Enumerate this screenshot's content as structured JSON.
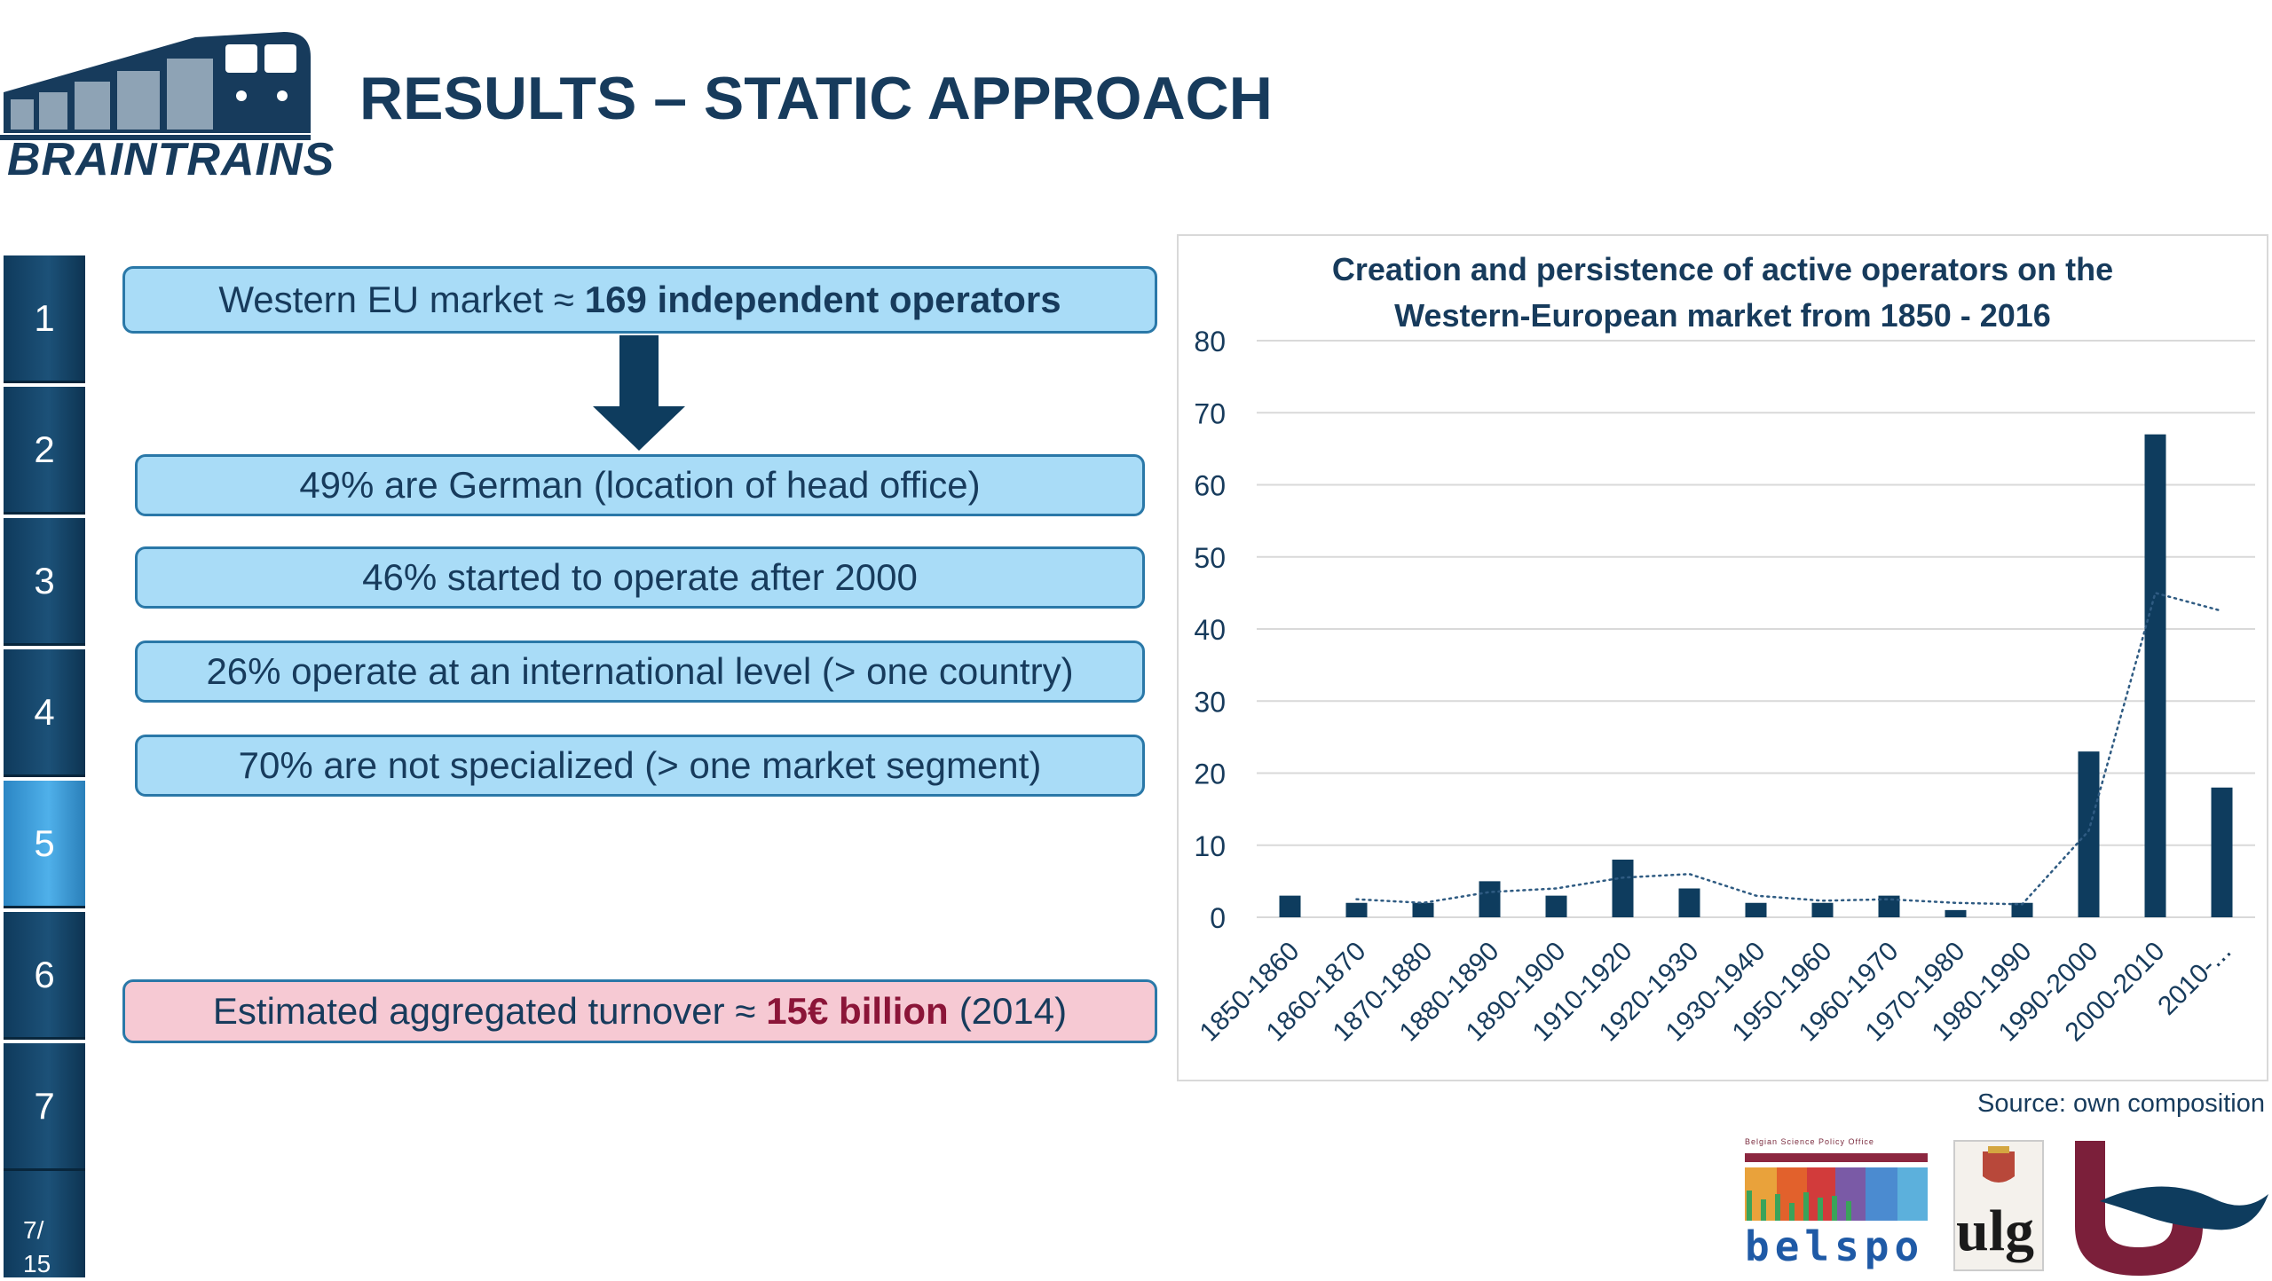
{
  "header": {
    "logo_text": "BRAINTRAINS",
    "title": "RESULTS – STATIC APPROACH"
  },
  "nav": {
    "items": [
      "1",
      "2",
      "3",
      "4",
      "5",
      "6",
      "7"
    ],
    "active": "5",
    "page_current": "7/",
    "page_total": "15"
  },
  "boxes": {
    "main_prefix": "Western EU market ≈",
    "main_bold": "169 independent operators",
    "facts": [
      "49% are German (location of head office)",
      "46% started to operate after 2000",
      "26% operate at an international level (> one country)",
      "70% are not specialized (> one market segment)"
    ],
    "turnover_prefix": "Estimated aggregated turnover ≈",
    "turnover_bold": "15€ billion",
    "turnover_suffix": "(2014)"
  },
  "colors": {
    "navy": "#173b5c",
    "bar": "#0e3c5e",
    "box_fill": "#a9dcf7",
    "box_border": "#2a78a8",
    "pink_fill": "#f6c9d3",
    "accent_red": "#8b1538",
    "active_nav": "#4fb0ea"
  },
  "chart_data": {
    "type": "bar",
    "title_line1": "Creation and persistence of active operators on the",
    "title_line2": "Western-European market from 1850 - 2016",
    "categories": [
      "1850-1860",
      "1860-1870",
      "1870-1880",
      "1880-1890",
      "1890-1900",
      "1910-1920",
      "1920-1930",
      "1930-1940",
      "1950-1960",
      "1960-1970",
      "1970-1980",
      "1980-1990",
      "1990-2000",
      "2000-2010",
      "2010-..."
    ],
    "values": [
      3,
      2,
      2,
      5,
      3,
      8,
      4,
      2,
      2,
      3,
      1,
      2,
      23,
      67,
      18
    ],
    "trendline": {
      "style": "dotted",
      "values": [
        null,
        2.5,
        2,
        3.5,
        4,
        5.5,
        6,
        3,
        2.3,
        2.5,
        2,
        1.8,
        12,
        45,
        42.5
      ]
    },
    "yticks": [
      0,
      10,
      20,
      30,
      40,
      50,
      60,
      70,
      80
    ],
    "ylim": [
      0,
      80
    ],
    "grid": true,
    "legend": "none"
  },
  "source": "Source: own composition",
  "partners": {
    "belspo_tagline": "Belgian Science Policy Office",
    "belspo": "belspo",
    "ulg": "ulg"
  }
}
